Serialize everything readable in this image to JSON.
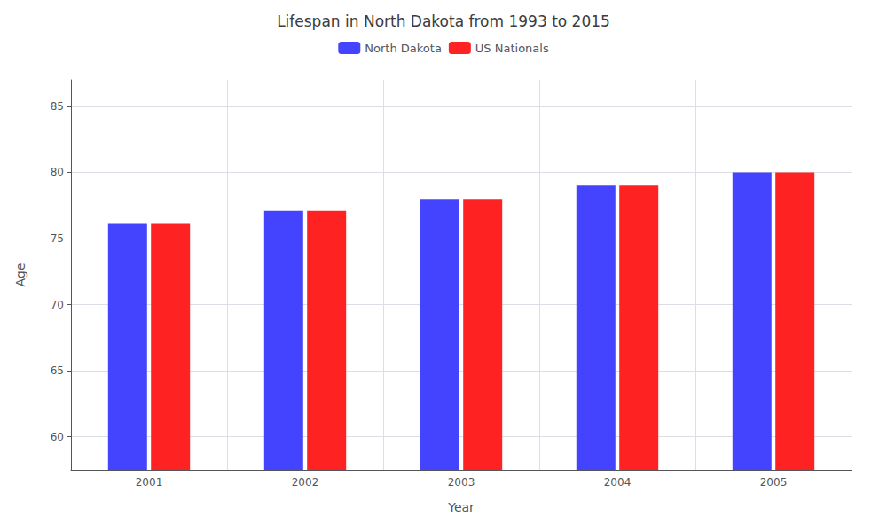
{
  "chart_data": {
    "type": "bar",
    "title": "Lifespan in North Dakota from 1993 to 2015",
    "xlabel": "Year",
    "ylabel": "Age",
    "categories": [
      "2001",
      "2002",
      "2003",
      "2004",
      "2005"
    ],
    "series": [
      {
        "name": "North Dakota",
        "color": "#4444ff",
        "values": [
          76.1,
          77.1,
          78.0,
          79.0,
          80.0
        ]
      },
      {
        "name": "US Nationals",
        "color": "#ff2222",
        "values": [
          76.1,
          77.1,
          78.0,
          79.0,
          80.0
        ]
      }
    ],
    "ylim": [
      57.5,
      87
    ],
    "yticks": [
      60,
      65,
      70,
      75,
      80,
      85
    ],
    "grid": true,
    "legend": "top"
  }
}
